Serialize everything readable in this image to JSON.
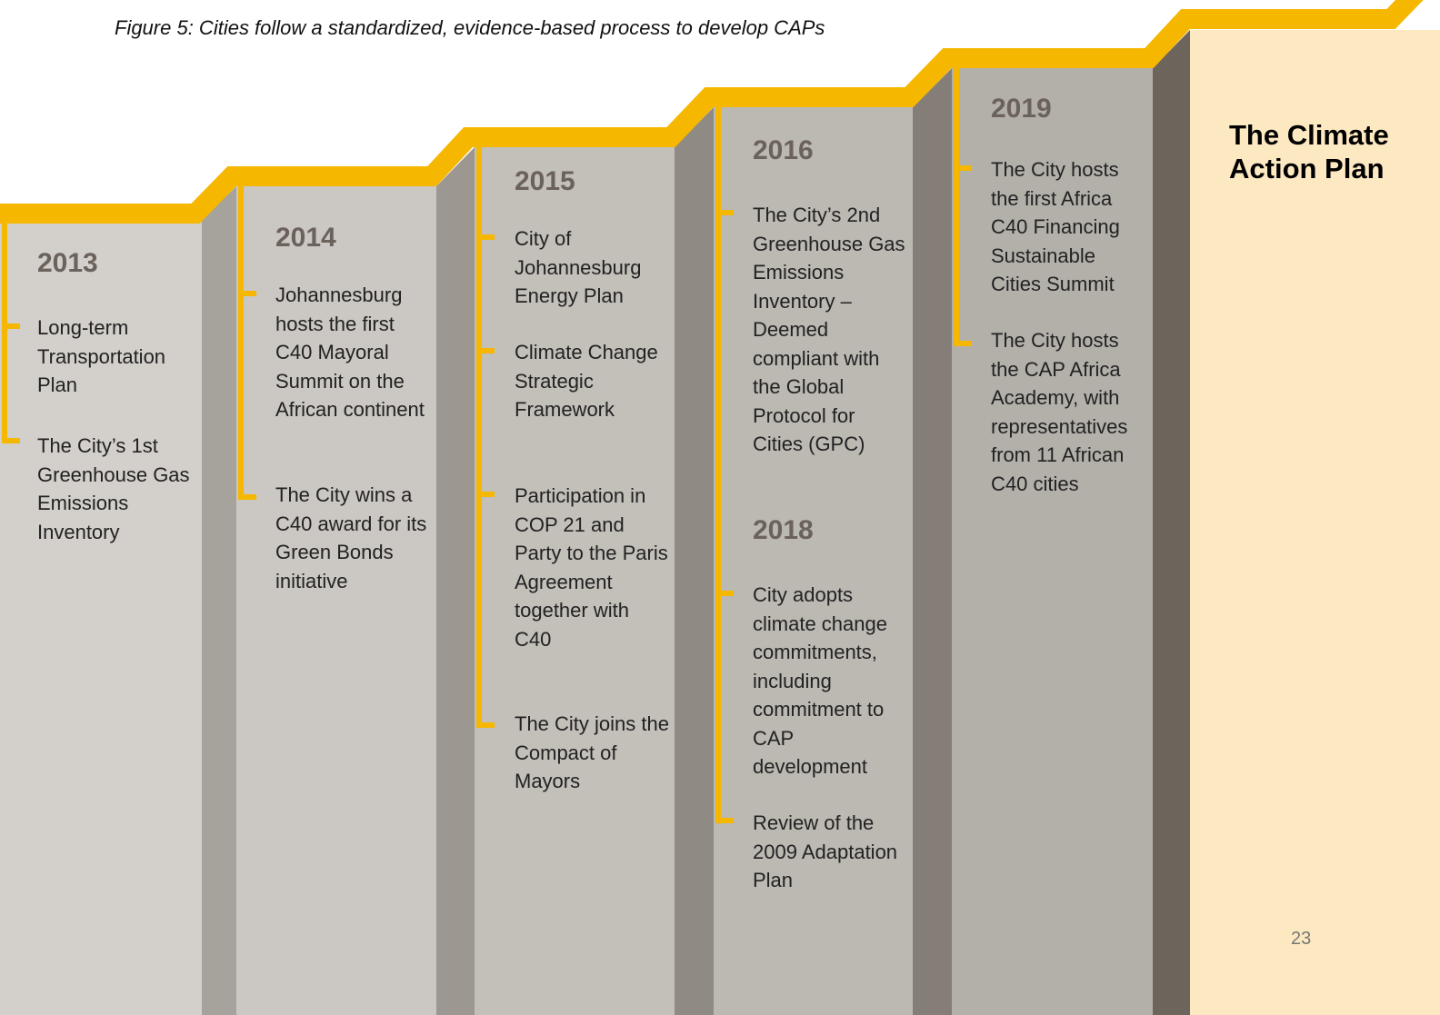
{
  "caption": "Figure 5: Cities follow a standardized, evidence-based process to develop CAPs",
  "columns": [
    {
      "groups": [
        {
          "year": "2013",
          "items": [
            "Long-term Transportation Plan",
            "The City’s 1st Greenhouse Gas Emissions Inventory"
          ]
        }
      ]
    },
    {
      "groups": [
        {
          "year": "2014",
          "items": [
            "Johannesburg hosts the first C40 Mayoral Summit on the African continent",
            "The City wins a C40 award for its Green Bonds initiative"
          ]
        }
      ]
    },
    {
      "groups": [
        {
          "year": "2015",
          "items": [
            "City of Johannesburg Energy Plan",
            "Climate Change Strategic Framework",
            "Participation in COP 21 and Party to the Paris Agreement together with C40",
            "The City joins the Compact of Mayors"
          ]
        }
      ]
    },
    {
      "groups": [
        {
          "year": "2016",
          "items": [
            "The City’s 2nd Greenhouse Gas Emissions Inventory – Deemed compliant with the Global Protocol for Cities (GPC)"
          ]
        },
        {
          "year": "2018",
          "items": [
            "City adopts climate change commitments, including commitment to CAP development",
            "Review of the 2009 Adaptation Plan"
          ]
        }
      ]
    },
    {
      "groups": [
        {
          "year": "2019",
          "items": [
            "The City hosts the first Africa C40 Financing Sustainable Cities Summit",
            "The City hosts the CAP Africa Academy, with representatives from 11 African C40 cities"
          ]
        }
      ]
    }
  ],
  "final_title": "The Climate Action Plan",
  "page_number": "23"
}
